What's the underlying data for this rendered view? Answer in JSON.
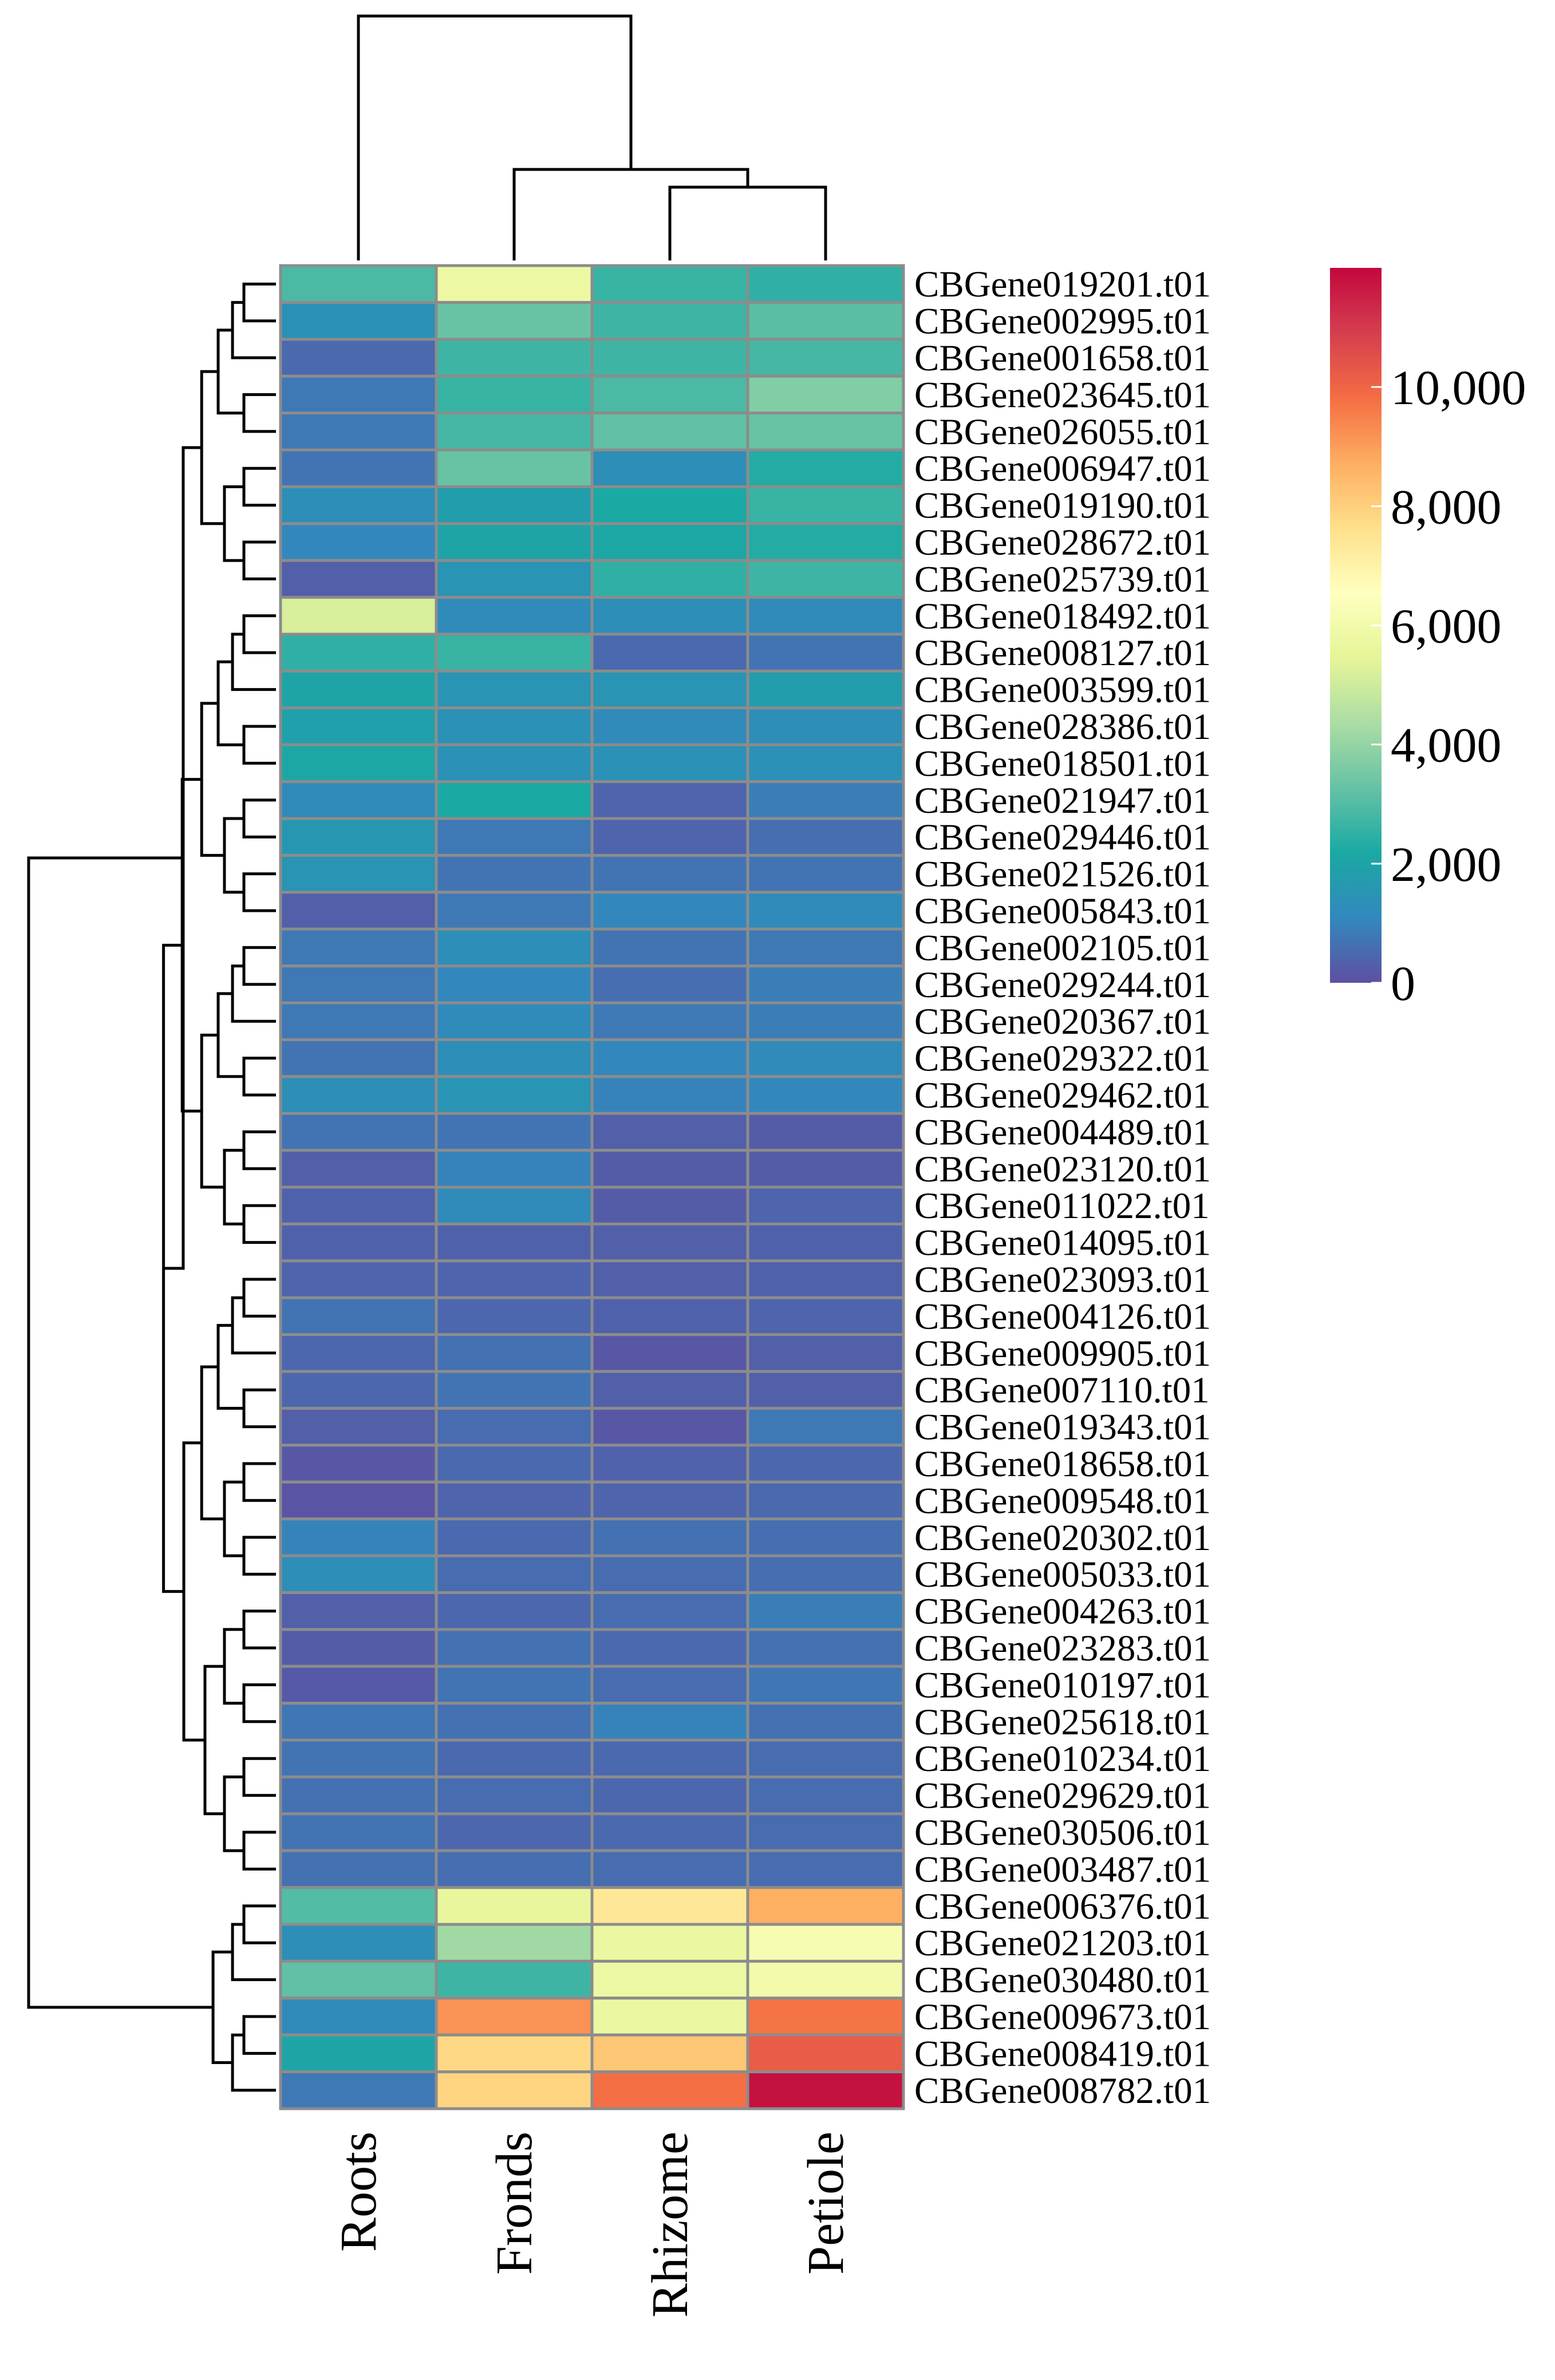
{
  "chart_data": {
    "type": "heatmap",
    "title": "",
    "columns": [
      "Roots",
      "Fronds",
      "Rhizome",
      "Petiole"
    ],
    "rows": [
      {
        "gene": "CBGene019201.t01",
        "values": [
          2900,
          5800,
          2600,
          2500
        ]
      },
      {
        "gene": "CBGene002995.t01",
        "values": [
          1400,
          3300,
          2700,
          3100
        ]
      },
      {
        "gene": "CBGene001658.t01",
        "values": [
          500,
          2700,
          2700,
          2800
        ]
      },
      {
        "gene": "CBGene023645.t01",
        "values": [
          800,
          2600,
          2900,
          3700
        ]
      },
      {
        "gene": "CBGene026055.t01",
        "values": [
          800,
          2800,
          3200,
          3300
        ]
      },
      {
        "gene": "CBGene006947.t01",
        "values": [
          700,
          3300,
          1300,
          2300
        ]
      },
      {
        "gene": "CBGene019190.t01",
        "values": [
          1300,
          1800,
          2200,
          2600
        ]
      },
      {
        "gene": "CBGene028672.t01",
        "values": [
          1100,
          2000,
          2100,
          2300
        ]
      },
      {
        "gene": "CBGene025739.t01",
        "values": [
          300,
          1500,
          2500,
          2700
        ]
      },
      {
        "gene": "CBGene018492.t01",
        "values": [
          5200,
          1200,
          1300,
          1200
        ]
      },
      {
        "gene": "CBGene008127.t01",
        "values": [
          2500,
          2600,
          500,
          700
        ]
      },
      {
        "gene": "CBGene003599.t01",
        "values": [
          2000,
          1500,
          1500,
          1800
        ]
      },
      {
        "gene": "CBGene028386.t01",
        "values": [
          1900,
          1400,
          1200,
          1300
        ]
      },
      {
        "gene": "CBGene018501.t01",
        "values": [
          2100,
          1400,
          1400,
          1400
        ]
      },
      {
        "gene": "CBGene021947.t01",
        "values": [
          1200,
          2200,
          400,
          900
        ]
      },
      {
        "gene": "CBGene029446.t01",
        "values": [
          1600,
          800,
          400,
          600
        ]
      },
      {
        "gene": "CBGene021526.t01",
        "values": [
          1500,
          700,
          700,
          700
        ]
      },
      {
        "gene": "CBGene005843.t01",
        "values": [
          300,
          800,
          1100,
          1200
        ]
      },
      {
        "gene": "CBGene002105.t01",
        "values": [
          800,
          1300,
          700,
          800
        ]
      },
      {
        "gene": "CBGene029244.t01",
        "values": [
          800,
          1100,
          600,
          900
        ]
      },
      {
        "gene": "CBGene020367.t01",
        "values": [
          800,
          1200,
          800,
          900
        ]
      },
      {
        "gene": "CBGene029322.t01",
        "values": [
          700,
          1300,
          1100,
          1200
        ]
      },
      {
        "gene": "CBGene029462.t01",
        "values": [
          1300,
          1500,
          1000,
          1100
        ]
      },
      {
        "gene": "CBGene004489.t01",
        "values": [
          700,
          700,
          300,
          250
        ]
      },
      {
        "gene": "CBGene023120.t01",
        "values": [
          300,
          1000,
          250,
          250
        ]
      },
      {
        "gene": "CBGene011022.t01",
        "values": [
          350,
          1200,
          250,
          400
        ]
      },
      {
        "gene": "CBGene014095.t01",
        "values": [
          350,
          350,
          300,
          350
        ]
      },
      {
        "gene": "CBGene023093.t01",
        "values": [
          400,
          400,
          300,
          350
        ]
      },
      {
        "gene": "CBGene004126.t01",
        "values": [
          700,
          450,
          350,
          400
        ]
      },
      {
        "gene": "CBGene009905.t01",
        "values": [
          450,
          650,
          150,
          300
        ]
      },
      {
        "gene": "CBGene007110.t01",
        "values": [
          450,
          700,
          300,
          300
        ]
      },
      {
        "gene": "CBGene019343.t01",
        "values": [
          300,
          550,
          150,
          800
        ]
      },
      {
        "gene": "CBGene018658.t01",
        "values": [
          150,
          500,
          350,
          450
        ]
      },
      {
        "gene": "CBGene009548.t01",
        "values": [
          100,
          400,
          400,
          500
        ]
      },
      {
        "gene": "CBGene020302.t01",
        "values": [
          1000,
          500,
          650,
          600
        ]
      },
      {
        "gene": "CBGene005033.t01",
        "values": [
          1300,
          550,
          550,
          600
        ]
      },
      {
        "gene": "CBGene004263.t01",
        "values": [
          300,
          450,
          550,
          900
        ]
      },
      {
        "gene": "CBGene023283.t01",
        "values": [
          250,
          650,
          500,
          650
        ]
      },
      {
        "gene": "CBGene010197.t01",
        "values": [
          200,
          700,
          550,
          750
        ]
      },
      {
        "gene": "CBGene025618.t01",
        "values": [
          750,
          650,
          1000,
          650
        ]
      },
      {
        "gene": "CBGene010234.t01",
        "values": [
          700,
          500,
          500,
          550
        ]
      },
      {
        "gene": "CBGene029629.t01",
        "values": [
          650,
          550,
          450,
          550
        ]
      },
      {
        "gene": "CBGene030506.t01",
        "values": [
          700,
          450,
          500,
          550
        ]
      },
      {
        "gene": "CBGene003487.t01",
        "values": [
          650,
          600,
          550,
          550
        ]
      },
      {
        "gene": "CBGene006376.t01",
        "values": [
          3000,
          5600,
          7400,
          8700
        ]
      },
      {
        "gene": "CBGene021203.t01",
        "values": [
          1300,
          4200,
          5700,
          6200
        ]
      },
      {
        "gene": "CBGene030480.t01",
        "values": [
          3200,
          2700,
          5800,
          6000
        ]
      },
      {
        "gene": "CBGene009673.t01",
        "values": [
          1200,
          9200,
          5700,
          9700
        ]
      },
      {
        "gene": "CBGene008419.t01",
        "values": [
          2000,
          7800,
          8200,
          10200
        ]
      },
      {
        "gene": "CBGene008782.t01",
        "values": [
          800,
          7900,
          9800,
          11800
        ]
      }
    ],
    "colorbar": {
      "min": 0,
      "max": 12000,
      "ticks": [
        {
          "value": 0,
          "label": "0"
        },
        {
          "value": 2000,
          "label": "2,000"
        },
        {
          "value": 4000,
          "label": "4,000"
        },
        {
          "value": 6000,
          "label": "6,000"
        },
        {
          "value": 8000,
          "label": "8,000"
        },
        {
          "value": 10000,
          "label": "10,000"
        }
      ],
      "palette": [
        "#5e4fa2",
        "#3288bd",
        "#1aa9a3",
        "#66c2a5",
        "#abdda4",
        "#e6f598",
        "#ffffbf",
        "#fee08b",
        "#fdae61",
        "#f46d43",
        "#d53e4f",
        "#c2073d"
      ]
    },
    "column_dendrogram": "((Roots),(Fronds,(Rhizome,Petiole)))",
    "row_dendrogram": "clustered"
  }
}
